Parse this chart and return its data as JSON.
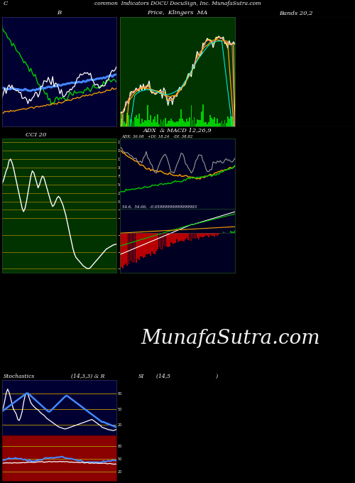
{
  "title_main": "common  Indicators DOCU DocuSign, Inc. MunafaSutra.com",
  "title_top_left": "C",
  "bg_color": "#000000",
  "panel1_title": "B",
  "panel2_title": "Price,  Klingers  MA",
  "panel3_title": "Bands 20,2",
  "panel4_title": "CCI 20",
  "panel5_title": "ADX  & MACD 12,26,9",
  "panel6_title": "Stochastics",
  "panel6_subtitle": "(14,3,3) & R",
  "panel7_title": "SI",
  "panel7_subtitle": "(14,5                           )",
  "watermark": "MunafaSutra.com",
  "adx_label": "ADX: 36.08   +DI: 18.24   -DI: 38.82",
  "macd_label": "54.6,  54.66,  -0.05999999999999993",
  "panel1_bg": "#000033",
  "panel2_bg": "#003300",
  "panel3_bg": "#000000",
  "panel4_bg": "#003300",
  "panel5a_bg": "#000022",
  "panel5b_bg": "#000022",
  "stoch_bg": "#000033",
  "si_bg": "#8B0000",
  "orange_line_color": "#FFA500",
  "blue_line_color": "#4488FF",
  "white_line_color": "#FFFFFF",
  "green_line_color": "#00CC00",
  "red_line_color": "#FF0000",
  "gray_line_color": "#888888",
  "cci_grid_color": "#AA8800",
  "stoch_grid_color": "#AA8800"
}
